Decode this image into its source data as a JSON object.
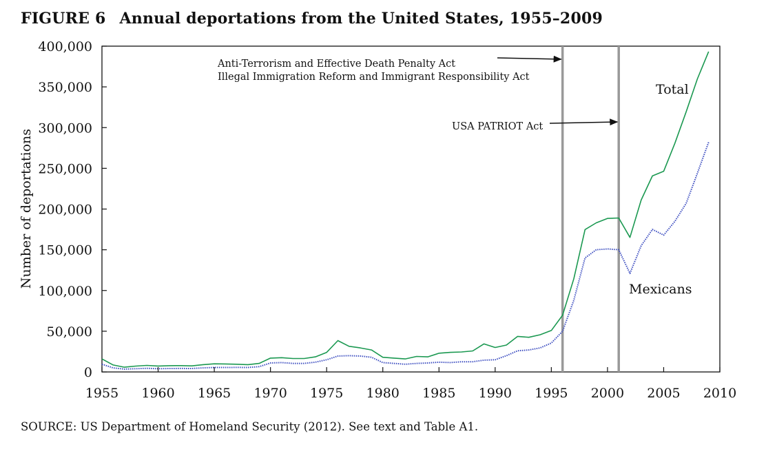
{
  "figure": {
    "number": "FIGURE 6",
    "title": "Annual deportations from the United States, 1955–2009",
    "source": "SOURCE: US Department of Homeland Security (2012). See text and Table A1."
  },
  "chart_data": {
    "type": "line",
    "title": "Annual deportations from the United States, 1955–2009",
    "xlabel": "",
    "ylabel": "Number of deportations",
    "xlim": [
      1955,
      2010
    ],
    "ylim": [
      0,
      400000
    ],
    "x_ticks": [
      1955,
      1960,
      1965,
      1970,
      1975,
      1980,
      1985,
      1990,
      1995,
      2000,
      2005,
      2010
    ],
    "x_tick_labels": [
      "1955",
      "1960",
      "1965",
      "1970",
      "1975",
      "1980",
      "1985",
      "1990",
      "1995",
      "2000",
      "2005",
      "2010"
    ],
    "y_ticks": [
      0,
      50000,
      100000,
      150000,
      200000,
      250000,
      300000,
      350000,
      400000
    ],
    "y_tick_labels": [
      "0",
      "50,000",
      "100,000",
      "150,000",
      "200,000",
      "250,000",
      "300,000",
      "350,000",
      "400,000"
    ],
    "grid": false,
    "legend": "none (series labeled directly on plot)",
    "x": [
      1955,
      1956,
      1957,
      1958,
      1959,
      1960,
      1961,
      1962,
      1963,
      1964,
      1965,
      1966,
      1967,
      1968,
      1969,
      1970,
      1971,
      1972,
      1973,
      1974,
      1975,
      1976,
      1977,
      1978,
      1979,
      1980,
      1981,
      1982,
      1983,
      1984,
      1985,
      1986,
      1987,
      1988,
      1989,
      1990,
      1991,
      1992,
      1993,
      1994,
      1995,
      1996,
      1997,
      1998,
      1999,
      2000,
      2001,
      2002,
      2003,
      2004,
      2005,
      2006,
      2007,
      2008,
      2009
    ],
    "series": [
      {
        "name": "Total",
        "color": "#1a9850",
        "style": "solid",
        "values": [
          16000,
          8500,
          5800,
          7200,
          8000,
          7300,
          7700,
          7800,
          7400,
          9000,
          10000,
          9800,
          9500,
          9000,
          10500,
          17000,
          17500,
          16500,
          16500,
          18500,
          24000,
          38500,
          31500,
          29500,
          27000,
          18000,
          17000,
          16000,
          19000,
          18500,
          23000,
          24000,
          24500,
          25800,
          34400,
          30000,
          33000,
          43600,
          42500,
          45700,
          50900,
          69700,
          114400,
          174800,
          183100,
          188500,
          189000,
          165200,
          211100,
          240700,
          246400,
          280900,
          319400,
          359800,
          393300
        ]
      },
      {
        "name": "Mexicans",
        "color": "#3b4cc0",
        "style": "dotted",
        "values": [
          9500,
          5000,
          3500,
          4000,
          4500,
          4000,
          4200,
          4300,
          4200,
          5000,
          5500,
          5500,
          5600,
          5500,
          6500,
          11000,
          11500,
          10500,
          10500,
          12000,
          15000,
          19500,
          20000,
          19500,
          18000,
          11500,
          10500,
          9500,
          10500,
          11000,
          12000,
          11500,
          12500,
          12500,
          14500,
          15000,
          20000,
          26000,
          27000,
          29500,
          35500,
          50000,
          88000,
          140000,
          150000,
          151000,
          150000,
          121000,
          155000,
          175000,
          168000,
          185000,
          207000,
          244000,
          282000
        ]
      }
    ],
    "vertical_lines": [
      {
        "x": 1996,
        "color": "#999999"
      },
      {
        "x": 2001,
        "color": "#999999"
      }
    ],
    "annotations": [
      {
        "text": "Anti-Terrorism and Effective Death Penalty Act",
        "points_to": 1996
      },
      {
        "text": "Illegal Immigration Reform and Immigrant Responsibility Act",
        "points_to": 1996
      },
      {
        "text": "USA PATRIOT Act",
        "points_to": 2001
      }
    ]
  }
}
